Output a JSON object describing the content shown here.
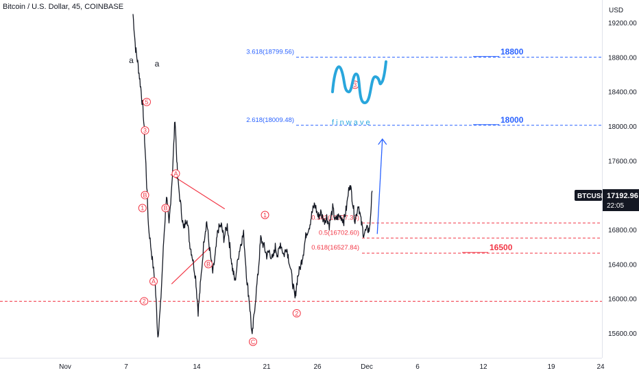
{
  "header": {
    "symbol_line": "Bitcoin / U.S. Dollar, 45, COINBASE"
  },
  "logo": {
    "text": "f i n w a v e",
    "accent": "#29a6dc"
  },
  "chart_data": {
    "type": "candlestick",
    "currency": "USD",
    "ticker": "BTCUSD",
    "last_price": "17192.96",
    "countdown": "22:05",
    "ylim": [
      15500,
      19300
    ],
    "y_ticks": [
      "19200.00",
      "18800.00",
      "18400.00",
      "18000.00",
      "17600.00",
      "17200.00",
      "16800.00",
      "16400.00",
      "16000.00",
      "15600.00"
    ],
    "x_ticks": [
      "Nov",
      "7",
      "14",
      "21",
      "26",
      "Dec",
      "6",
      "12",
      "19",
      "24"
    ],
    "price_path": [
      [
        8.0,
        19300
      ],
      [
        8.3,
        18900
      ],
      [
        8.6,
        18700
      ],
      [
        8.9,
        18450
      ],
      [
        9.2,
        18150
      ],
      [
        9.5,
        17550
      ],
      [
        9.8,
        16850
      ],
      [
        10.2,
        16500
      ],
      [
        10.6,
        16150
      ],
      [
        10.9,
        15560
      ],
      [
        11.2,
        15900
      ],
      [
        11.6,
        16700
      ],
      [
        11.9,
        17200
      ],
      [
        12.2,
        16850
      ],
      [
        12.6,
        17450
      ],
      [
        12.9,
        18100
      ],
      [
        13.2,
        17400
      ],
      [
        13.6,
        17050
      ],
      [
        13.9,
        16800
      ],
      [
        14.3,
        16950
      ],
      [
        14.6,
        16650
      ],
      [
        14.9,
        16500
      ],
      [
        15.3,
        16250
      ],
      [
        15.6,
        15850
      ],
      [
        15.9,
        16200
      ],
      [
        16.3,
        16700
      ],
      [
        16.6,
        16900
      ],
      [
        16.9,
        16600
      ],
      [
        17.3,
        16300
      ],
      [
        17.6,
        16500
      ],
      [
        17.9,
        16800
      ],
      [
        18.3,
        16850
      ],
      [
        18.6,
        16700
      ],
      [
        19.0,
        16850
      ],
      [
        19.3,
        16600
      ],
      [
        19.6,
        16350
      ],
      [
        19.9,
        16200
      ],
      [
        20.3,
        16500
      ],
      [
        20.6,
        16650
      ],
      [
        20.9,
        16750
      ],
      [
        21.3,
        16200
      ],
      [
        21.6,
        15950
      ],
      [
        21.9,
        15550
      ],
      [
        22.2,
        15900
      ],
      [
        22.6,
        16300
      ],
      [
        22.9,
        16700
      ],
      [
        23.3,
        16600
      ],
      [
        23.6,
        16500
      ],
      [
        23.9,
        16550
      ],
      [
        24.3,
        16450
      ],
      [
        24.6,
        16600
      ],
      [
        24.9,
        16500
      ],
      [
        25.2,
        16650
      ],
      [
        25.6,
        16500
      ],
      [
        25.9,
        16600
      ],
      [
        26.2,
        16450
      ],
      [
        26.6,
        16200
      ],
      [
        26.9,
        16000
      ],
      [
        27.2,
        16250
      ],
      [
        27.6,
        16400
      ],
      [
        27.9,
        16550
      ],
      [
        28.2,
        16750
      ],
      [
        28.6,
        16850
      ],
      [
        28.9,
        17000
      ],
      [
        29.2,
        17100
      ],
      [
        29.6,
        16950
      ],
      [
        29.9,
        17000
      ],
      [
        30.3,
        16900
      ],
      [
        30.6,
        16950
      ],
      [
        30.9,
        16850
      ],
      [
        31.3,
        17050
      ],
      [
        31.6,
        16900
      ],
      [
        31.9,
        16950
      ],
      [
        32.3,
        16950
      ],
      [
        32.6,
        16900
      ],
      [
        32.9,
        17050
      ],
      [
        33.3,
        17350
      ],
      [
        33.6,
        17150
      ],
      [
        33.9,
        16900
      ],
      [
        34.3,
        17100
      ],
      [
        34.6,
        16900
      ],
      [
        34.9,
        16750
      ],
      [
        35.3,
        16800
      ],
      [
        35.6,
        16800
      ],
      [
        35.9,
        17250
      ]
    ],
    "horizontal_levels": [
      {
        "price": 18799.56,
        "color": "#2962ff",
        "label": "3.618(18799.56)",
        "target": "18800"
      },
      {
        "price": 18009.48,
        "color": "#2962ff",
        "label": "2.618(18009.48)",
        "target": "18000"
      },
      {
        "price": 16877.35,
        "color": "#f23645",
        "label": "0.382(16877.35)"
      },
      {
        "price": 16702.6,
        "color": "#f23645",
        "label": "0.5(16702.60)"
      },
      {
        "price": 16527.84,
        "color": "#f23645",
        "label": "0.618(16527.84)",
        "target": "16500"
      },
      {
        "price": 15970,
        "color": "#f23645"
      }
    ],
    "wave_labels_red": [
      {
        "text": "5",
        "x": 9.6,
        "price": 18280
      },
      {
        "text": "3",
        "x": 9.4,
        "price": 17950
      },
      {
        "text": "1",
        "x": 9.1,
        "price": 17050
      },
      {
        "text": "B",
        "x": 9.4,
        "price": 17200
      },
      {
        "text": "B",
        "x": 11.8,
        "price": 17050
      },
      {
        "text": "A",
        "x": 10.4,
        "price": 16200
      },
      {
        "text": "2",
        "x": 9.3,
        "price": 15970
      },
      {
        "text": "A",
        "x": 13.0,
        "price": 17450
      },
      {
        "text": "B",
        "x": 16.8,
        "price": 16400
      },
      {
        "text": "C",
        "x": 22.0,
        "price": 15500
      },
      {
        "text": "1",
        "x": 23.4,
        "price": 16970
      },
      {
        "text": "2",
        "x": 27.1,
        "price": 15830
      },
      {
        "text": "3",
        "x": 33.9,
        "price": 18480
      }
    ],
    "wave_labels_black": [
      {
        "text": "a",
        "x": 7.8,
        "price": 18730
      },
      {
        "text": "a",
        "x": 10.8,
        "price": 18690
      }
    ],
    "triangle_lines": [
      {
        "x1": 12.4,
        "p1": 17440,
        "x2": 18.7,
        "p2": 17040
      },
      {
        "x1": 12.5,
        "p1": 16170,
        "x2": 16.9,
        "p2": 16590
      }
    ],
    "projection": {
      "x1": 36.5,
      "p1": 16750,
      "x2": 37.1,
      "p2": 17850
    },
    "colors": {
      "candle": "#131722",
      "red": "#f23645",
      "blue": "#2962ff",
      "badge": "#131722"
    }
  }
}
